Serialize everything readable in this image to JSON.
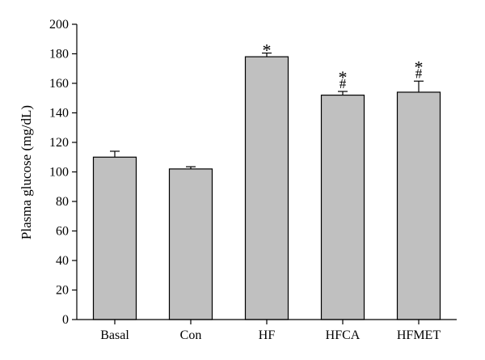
{
  "chart_data": {
    "type": "bar",
    "title": "",
    "xlabel": "",
    "ylabel": "Plasma glucose (mg/dL)",
    "ylim": [
      0,
      200
    ],
    "yticks": [
      0,
      20,
      40,
      60,
      80,
      100,
      120,
      140,
      160,
      180,
      200
    ],
    "grid": false,
    "legend": "none",
    "categories": [
      "Basal",
      "Con",
      "HF",
      "HFCA",
      "HFMET"
    ],
    "values": [
      110,
      102,
      178,
      152,
      154
    ],
    "errors": [
      4,
      1.5,
      2.5,
      2.5,
      7.5
    ],
    "annotations": [
      [],
      [],
      [
        "*"
      ],
      [
        "*",
        "#"
      ],
      [
        "*",
        "#"
      ]
    ],
    "bar_color": "#c0c0c0",
    "edge_color": "#000000"
  }
}
